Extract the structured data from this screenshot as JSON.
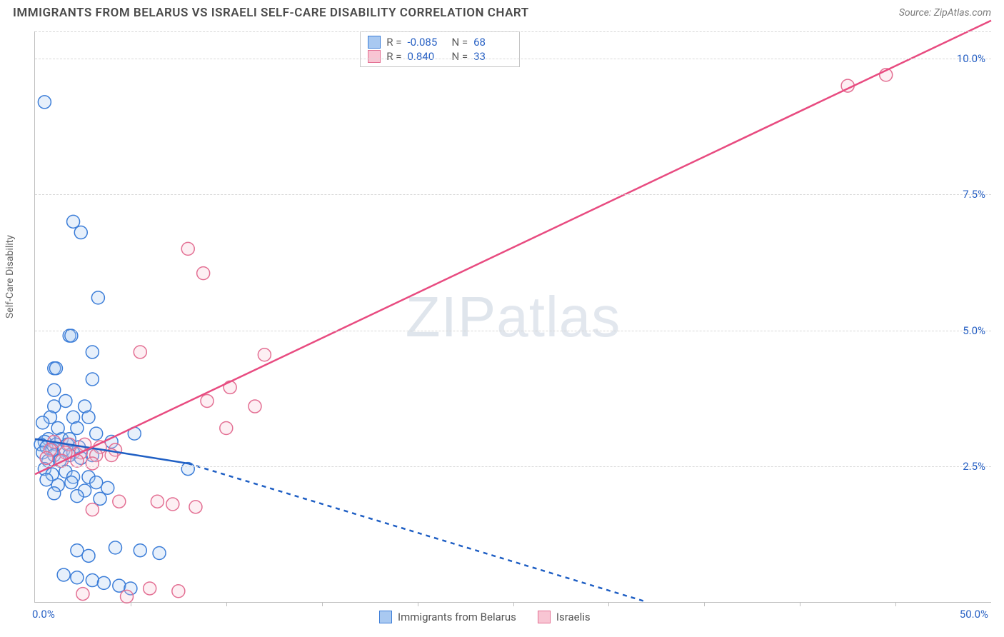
{
  "title": "IMMIGRANTS FROM BELARUS VS ISRAELI SELF-CARE DISABILITY CORRELATION CHART",
  "source": "Source: ZipAtlas.com",
  "watermark": "ZIPatlas",
  "chart": {
    "type": "scatter",
    "background_color": "#ffffff",
    "grid_color": "#d8d8d8",
    "axis_color": "#bfbfbf",
    "tick_label_color": "#2861c4",
    "tick_fontsize": 15,
    "y_axis_title": "Self-Care Disability",
    "y_axis_title_color": "#666666",
    "y_axis_title_fontsize": 14,
    "xlim": [
      0,
      50
    ],
    "ylim": [
      0,
      10.5
    ],
    "y_ticks": [
      {
        "v": 2.5,
        "label": "2.5%"
      },
      {
        "v": 5.0,
        "label": "5.0%"
      },
      {
        "v": 7.5,
        "label": "7.5%"
      },
      {
        "v": 10.0,
        "label": "10.0%"
      }
    ],
    "x_ticks_minor": [
      5,
      10,
      15,
      20,
      25,
      30,
      35,
      40,
      45
    ],
    "x_tick_labels": [
      {
        "v": 0,
        "label": "0.0%"
      },
      {
        "v": 50,
        "label": "50.0%"
      }
    ],
    "marker_radius": 9,
    "marker_stroke_width": 1.5,
    "marker_fill_opacity": 0.28,
    "series": [
      {
        "name": "Immigrants from Belarus",
        "color": "#6aa3e8",
        "stroke": "#3b7dd8",
        "fill": "#a9c9f1",
        "points": [
          [
            0.5,
            9.2
          ],
          [
            2.0,
            7.0
          ],
          [
            2.4,
            6.8
          ],
          [
            3.3,
            5.6
          ],
          [
            1.8,
            4.9
          ],
          [
            1.9,
            4.9
          ],
          [
            3.0,
            4.6
          ],
          [
            1.0,
            4.3
          ],
          [
            1.1,
            4.3
          ],
          [
            3.0,
            4.1
          ],
          [
            1.0,
            3.9
          ],
          [
            1.6,
            3.7
          ],
          [
            2.6,
            3.6
          ],
          [
            1.0,
            3.6
          ],
          [
            0.8,
            3.4
          ],
          [
            2.0,
            3.4
          ],
          [
            2.8,
            3.4
          ],
          [
            0.4,
            3.3
          ],
          [
            1.2,
            3.2
          ],
          [
            2.2,
            3.2
          ],
          [
            5.2,
            3.1
          ],
          [
            3.2,
            3.1
          ],
          [
            0.7,
            3.0
          ],
          [
            1.4,
            3.0
          ],
          [
            1.8,
            3.0
          ],
          [
            0.5,
            2.95
          ],
          [
            4.0,
            2.95
          ],
          [
            0.3,
            2.9
          ],
          [
            1.1,
            2.9
          ],
          [
            1.7,
            2.9
          ],
          [
            2.3,
            2.85
          ],
          [
            0.6,
            2.85
          ],
          [
            0.9,
            2.8
          ],
          [
            1.5,
            2.8
          ],
          [
            2.0,
            2.75
          ],
          [
            0.4,
            2.75
          ],
          [
            1.0,
            2.7
          ],
          [
            1.8,
            2.7
          ],
          [
            3.0,
            2.7
          ],
          [
            2.4,
            2.65
          ],
          [
            0.7,
            2.6
          ],
          [
            1.3,
            2.6
          ],
          [
            8.0,
            2.45
          ],
          [
            0.5,
            2.45
          ],
          [
            1.6,
            2.4
          ],
          [
            0.9,
            2.35
          ],
          [
            2.8,
            2.3
          ],
          [
            2.0,
            2.3
          ],
          [
            0.6,
            2.25
          ],
          [
            1.9,
            2.2
          ],
          [
            3.2,
            2.2
          ],
          [
            1.2,
            2.15
          ],
          [
            3.8,
            2.1
          ],
          [
            2.6,
            2.05
          ],
          [
            1.0,
            2.0
          ],
          [
            2.2,
            1.95
          ],
          [
            3.4,
            1.9
          ],
          [
            4.2,
            1.0
          ],
          [
            2.2,
            0.95
          ],
          [
            5.5,
            0.95
          ],
          [
            6.5,
            0.9
          ],
          [
            2.8,
            0.85
          ],
          [
            1.5,
            0.5
          ],
          [
            2.2,
            0.45
          ],
          [
            3.0,
            0.4
          ],
          [
            3.6,
            0.35
          ],
          [
            4.4,
            0.3
          ],
          [
            5.0,
            0.25
          ]
        ],
        "trend": {
          "solid": {
            "x1": 0,
            "y1": 3.0,
            "x2": 8,
            "y2": 2.55
          },
          "dashed": {
            "x1": 8,
            "y1": 2.55,
            "x2": 32,
            "y2": 0
          },
          "line_color": "#1f5fc4",
          "line_width": 2.5,
          "dash": "6,6"
        }
      },
      {
        "name": "Israelis",
        "color": "#f4a6bb",
        "stroke": "#e36f93",
        "fill": "#f8c5d3",
        "points": [
          [
            44.5,
            9.7
          ],
          [
            42.5,
            9.5
          ],
          [
            8.0,
            6.5
          ],
          [
            8.8,
            6.05
          ],
          [
            5.5,
            4.6
          ],
          [
            12.0,
            4.55
          ],
          [
            10.2,
            3.95
          ],
          [
            9.0,
            3.7
          ],
          [
            11.5,
            3.6
          ],
          [
            10.0,
            3.2
          ],
          [
            1.0,
            2.95
          ],
          [
            1.8,
            2.9
          ],
          [
            2.6,
            2.9
          ],
          [
            3.4,
            2.85
          ],
          [
            4.2,
            2.8
          ],
          [
            0.8,
            2.8
          ],
          [
            1.6,
            2.75
          ],
          [
            2.4,
            2.75
          ],
          [
            3.2,
            2.7
          ],
          [
            4.0,
            2.7
          ],
          [
            0.6,
            2.65
          ],
          [
            1.4,
            2.6
          ],
          [
            2.2,
            2.6
          ],
          [
            3.0,
            2.55
          ],
          [
            6.4,
            1.85
          ],
          [
            4.4,
            1.85
          ],
          [
            7.2,
            1.8
          ],
          [
            8.4,
            1.75
          ],
          [
            3.0,
            1.7
          ],
          [
            6.0,
            0.25
          ],
          [
            7.5,
            0.2
          ],
          [
            2.5,
            0.15
          ],
          [
            4.8,
            0.1
          ]
        ],
        "trend": {
          "solid": {
            "x1": 0,
            "y1": 2.35,
            "x2": 50,
            "y2": 10.7
          },
          "line_color": "#e84b80",
          "line_width": 2.5
        }
      }
    ],
    "stats_legend": {
      "border_color": "#c6c6c6",
      "rows": [
        {
          "swatch_fill": "#a9c9f1",
          "swatch_stroke": "#3b7dd8",
          "R": "-0.085",
          "N": "68"
        },
        {
          "swatch_fill": "#f8c5d3",
          "swatch_stroke": "#e36f93",
          "R": "0.840",
          "N": "33"
        }
      ],
      "label_color": "#5a5a5a",
      "value_color": "#2861c4"
    },
    "bottom_legend": [
      {
        "swatch_fill": "#a9c9f1",
        "swatch_stroke": "#3b7dd8",
        "label": "Immigrants from Belarus"
      },
      {
        "swatch_fill": "#f8c5d3",
        "swatch_stroke": "#e36f93",
        "label": "Israelis"
      }
    ]
  }
}
